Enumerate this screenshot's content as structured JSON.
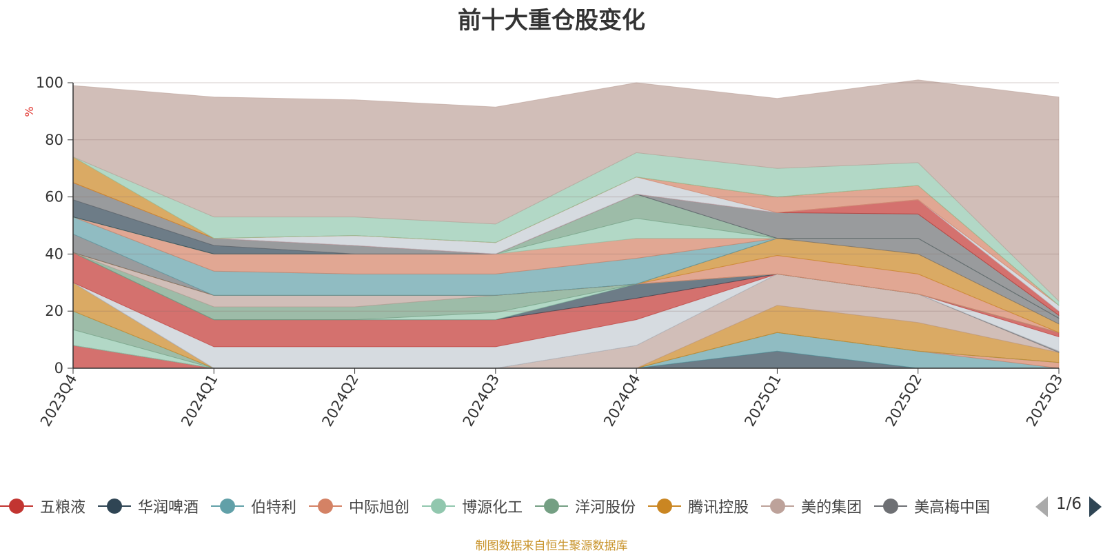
{
  "chart_data": {
    "type": "area",
    "title": "前十大重仓股变化",
    "ylabel": "%",
    "ylim": [
      0,
      100
    ],
    "yticks": [
      "0",
      "20",
      "40",
      "60",
      "80",
      "100"
    ],
    "categories": [
      "2023Q4",
      "2024Q1",
      "2024Q2",
      "2024Q3",
      "2024Q4",
      "2025Q1",
      "2025Q2",
      "2025Q3"
    ],
    "stacked": true,
    "grid": true,
    "legend_position": "bottom",
    "series": [
      {
        "name": "五粮液",
        "color": "#c23531",
        "values": [
          8,
          0,
          0,
          0,
          0,
          0,
          0,
          0
        ]
      },
      {
        "name": "华润啤酒",
        "color": "#2f4554",
        "values": [
          0,
          0,
          0,
          0,
          0,
          6,
          0,
          0
        ]
      },
      {
        "name": "伯特利",
        "color": "#61a0a8",
        "values": [
          0,
          0,
          0,
          0,
          0,
          6.5,
          6,
          0
        ]
      },
      {
        "name": "中际旭创",
        "color": "#d48265",
        "values": [
          0,
          0,
          0,
          0,
          0,
          0,
          0,
          2
        ]
      },
      {
        "name": "博源化工",
        "color": "#91c7ae",
        "values": [
          5.5,
          0,
          0,
          0,
          0,
          0,
          0,
          0
        ]
      },
      {
        "name": "洋河股份",
        "color": "#749f83",
        "values": [
          6.5,
          0,
          0,
          0,
          0,
          0,
          0,
          0
        ]
      },
      {
        "name": "腾讯控股",
        "color": "#ca8622",
        "values": [
          10,
          0,
          0,
          0,
          0,
          9.5,
          10,
          3.5
        ]
      },
      {
        "name": "美的集团",
        "color": "#bda29a",
        "values": [
          0,
          0,
          0,
          0,
          8,
          11,
          10,
          0
        ]
      },
      {
        "name": "美高梅中国",
        "color": "#6e7074",
        "values": [
          0,
          0,
          0,
          0,
          0,
          0,
          0,
          0.5
        ]
      },
      {
        "name": "",
        "color": "#c4ccd3",
        "values": [
          0,
          7.5,
          7.5,
          7.5,
          9,
          0,
          0,
          5
        ]
      },
      {
        "name": "",
        "color": "#c23531",
        "values": [
          10.5,
          9.5,
          9.5,
          9.5,
          7.5,
          0,
          0,
          1.5
        ]
      },
      {
        "name": "",
        "color": "#2f4554",
        "values": [
          0,
          0,
          0,
          0,
          5,
          0,
          0,
          0
        ]
      },
      {
        "name": "",
        "color": "#91c7ae",
        "values": [
          0,
          0,
          0,
          2.5,
          0,
          0,
          0,
          0
        ]
      },
      {
        "name": "",
        "color": "#749f83",
        "values": [
          0,
          4.5,
          4.5,
          6,
          0,
          0,
          0,
          0
        ]
      },
      {
        "name": "",
        "color": "#bda29a",
        "values": [
          0,
          4,
          4,
          0,
          0,
          0,
          0,
          0
        ]
      },
      {
        "name": "",
        "color": "#d48265",
        "values": [
          0,
          0,
          0,
          0,
          0,
          6.5,
          7,
          0
        ]
      },
      {
        "name": "",
        "color": "#ca8622",
        "values": [
          0,
          0,
          0,
          0,
          0,
          6,
          7,
          3
        ]
      },
      {
        "name": "",
        "color": "#6e7074",
        "values": [
          6.5,
          0,
          0,
          0,
          0,
          0,
          5.5,
          2
        ]
      },
      {
        "name": "",
        "color": "#61a0a8",
        "values": [
          6,
          8.5,
          7.5,
          7.5,
          9,
          0,
          0,
          0
        ]
      },
      {
        "name": "",
        "color": "#d48265",
        "values": [
          0,
          6,
          7,
          7,
          7,
          0,
          0,
          0
        ]
      },
      {
        "name": "",
        "color": "#91c7ae",
        "values": [
          0,
          0,
          0,
          0,
          7,
          0,
          0,
          0
        ]
      },
      {
        "name": "",
        "color": "#749f83",
        "values": [
          0,
          0,
          0,
          0,
          8.5,
          0,
          0,
          0
        ]
      },
      {
        "name": "",
        "color": "#2f4554",
        "values": [
          6,
          3,
          0,
          0,
          0,
          0,
          0,
          0
        ]
      },
      {
        "name": "",
        "color": "#6e7074",
        "values": [
          6,
          2.5,
          3,
          0,
          0,
          9,
          8.5,
          1
        ]
      },
      {
        "name": "",
        "color": "#c23531",
        "values": [
          0,
          0,
          0,
          0,
          0,
          0,
          5,
          1.5
        ]
      },
      {
        "name": "",
        "color": "#c4ccd3",
        "values": [
          0,
          0,
          3.5,
          4,
          6,
          0,
          0,
          2
        ]
      },
      {
        "name": "",
        "color": "#d48265",
        "values": [
          0,
          0,
          0,
          0,
          0,
          5.5,
          5,
          0
        ]
      },
      {
        "name": "",
        "color": "#ca8622",
        "values": [
          9,
          0,
          0,
          0,
          0,
          0,
          0,
          0
        ]
      },
      {
        "name": "",
        "color": "#91c7ae",
        "values": [
          0,
          7.5,
          6.5,
          6.5,
          8.5,
          10,
          8,
          1.5
        ]
      },
      {
        "name": "",
        "color": "#bda29a",
        "values": [
          25,
          42,
          41,
          41,
          24.5,
          24.5,
          29,
          71.5
        ]
      }
    ]
  },
  "legend": {
    "pager_text": "1/6",
    "prev_icon": "triangle-left-icon",
    "next_icon": "triangle-right-icon"
  },
  "footer": {
    "source_note": "制图数据来自恒生聚源数据库"
  }
}
